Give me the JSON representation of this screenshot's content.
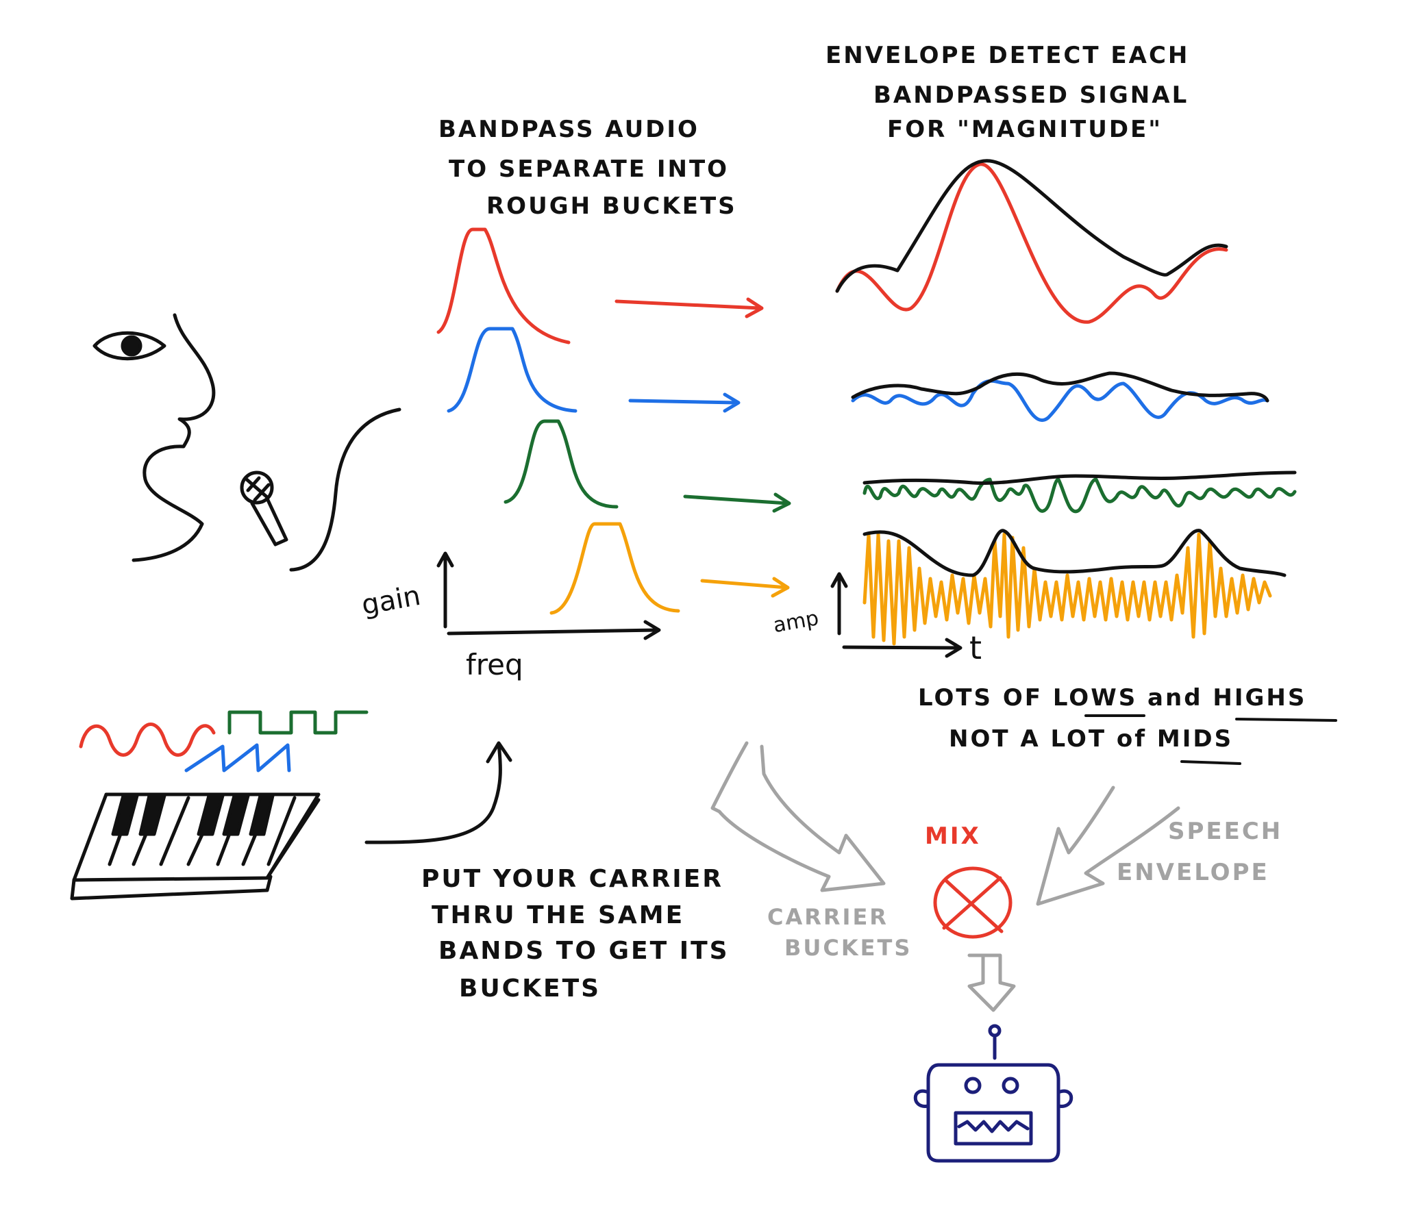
{
  "colors": {
    "ink": "#111111",
    "red": "#e8392b",
    "blue": "#1e6fe6",
    "green": "#1b6e30",
    "orange": "#f5a10a",
    "gray": "#a3a3a3",
    "navy": "#1c1f7a"
  },
  "labels": {
    "bandpass": [
      "BANDPASS  AUDIO",
      "TO SEPARATE INTO",
      "ROUGH BUCKETS"
    ],
    "envelope": [
      "ENVELOPE DETECT EACH",
      "BANDPASSED SIGNAL",
      "FOR \"MAGNITUDE\""
    ],
    "gain": "gain",
    "freq": "freq",
    "amp": "amp",
    "t": "t",
    "lots_line1": {
      "a": "LOTS  OF ",
      "lows": "LOWS",
      "and": " and ",
      "highs": "HIGHS"
    },
    "lots_line2": {
      "a": "NOT A LOT of ",
      "mids": "MIDS"
    },
    "carrier": [
      "PUT YOUR CARRIER",
      "THRU THE SAME",
      "BANDS TO GET ITS",
      "BUCKETS"
    ],
    "carrier_buckets": [
      "CARRIER",
      "BUCKETS"
    ],
    "speech_envelope": [
      "SPEECH",
      "ENVELOPE"
    ],
    "mix": "MIX"
  },
  "icons": [
    "face-icon",
    "microphone-icon",
    "keyboard-icon",
    "robot-icon",
    "mixer-icon"
  ]
}
